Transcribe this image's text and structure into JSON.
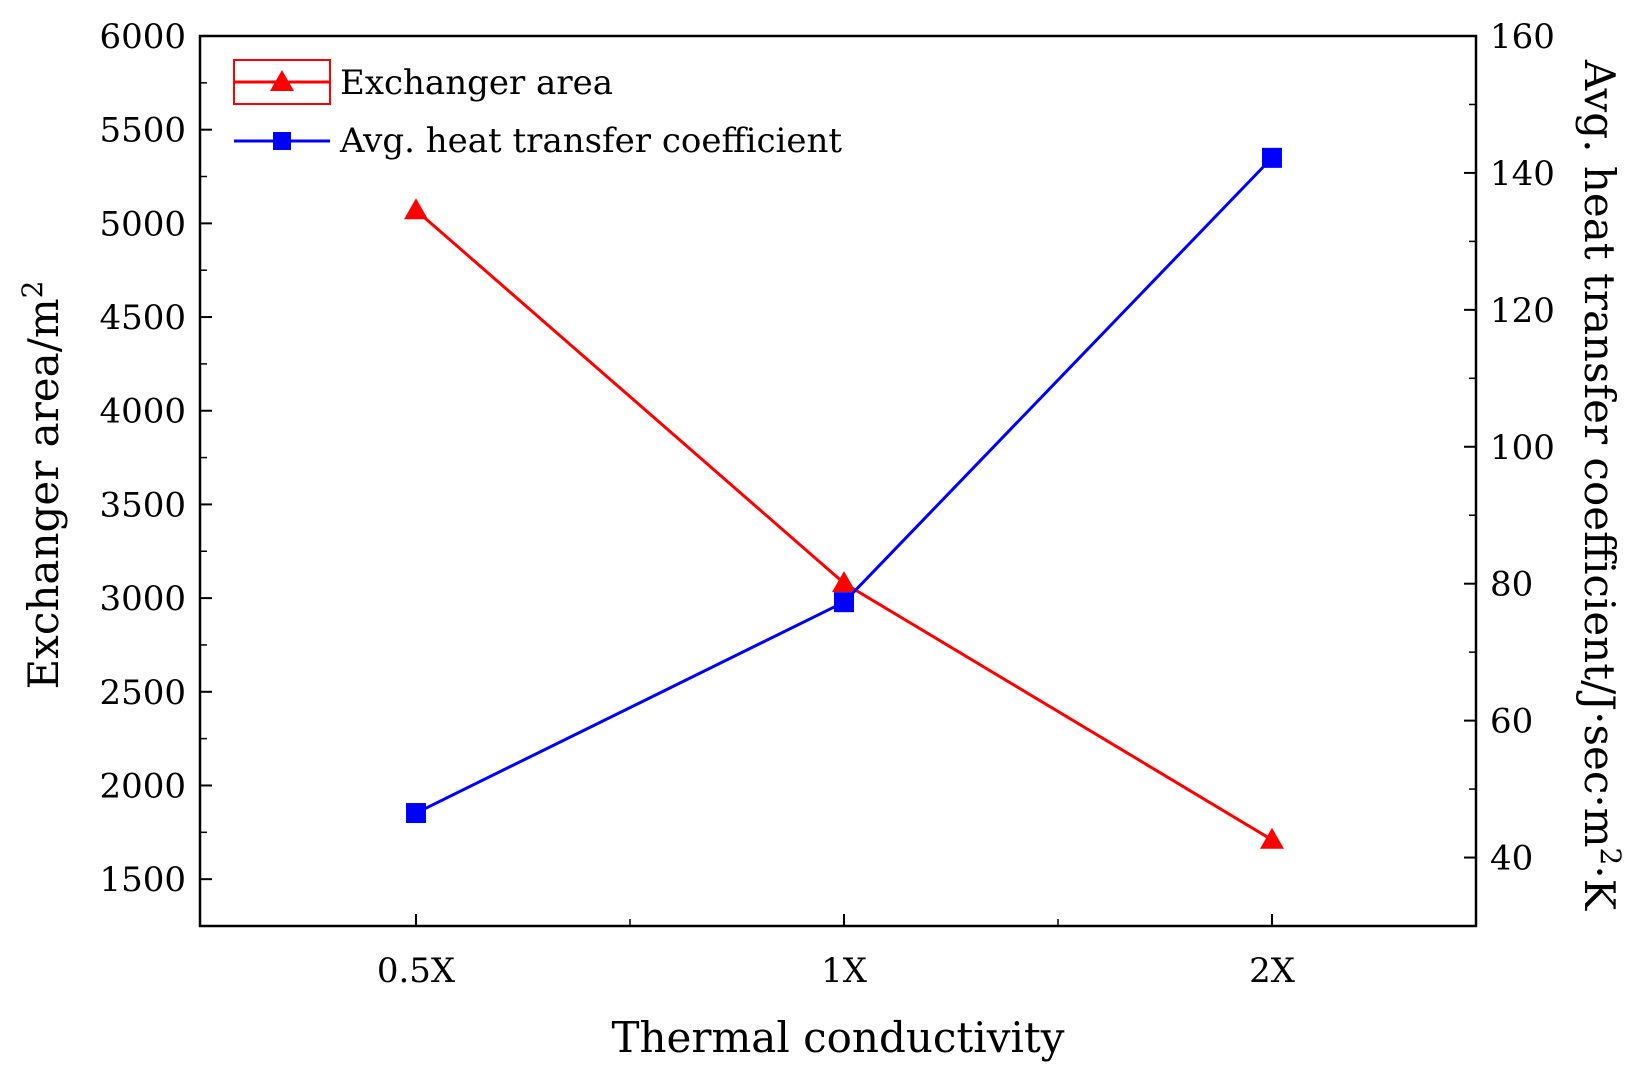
{
  "chart_data": {
    "type": "line",
    "categories": [
      "0.5X",
      "1X",
      "2X"
    ],
    "xlabel": "Thermal conductivity",
    "ylabel_left": {
      "text": "Exchanger area/m",
      "sup": "2"
    },
    "ylabel_right": {
      "text": "Avg. heat transfer coefficient/J·sec·m",
      "sup": "2",
      "tail": "·K"
    },
    "ylim_left": [
      1250,
      6000
    ],
    "ylim_right": [
      30,
      160
    ],
    "yticks_left": [
      1500,
      2000,
      2500,
      3000,
      3500,
      4000,
      4500,
      5000,
      5500,
      6000
    ],
    "yticks_right": [
      40,
      60,
      80,
      100,
      120,
      140,
      160
    ],
    "legend_position": "top-left",
    "series": [
      {
        "name": "Exchanger area",
        "axis": "left",
        "color": "#ff0000",
        "marker": "triangle",
        "values": [
          5070,
          3080,
          1710
        ]
      },
      {
        "name": "Avg. heat transfer coefficient",
        "axis": "right",
        "color": "#0000ff",
        "marker": "square",
        "values": [
          46.5,
          77.3,
          142.2
        ]
      }
    ]
  }
}
